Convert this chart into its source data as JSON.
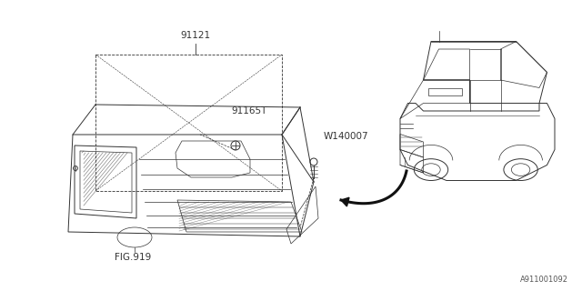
{
  "bg_color": "#ffffff",
  "line_color": "#333333",
  "fig_width": 6.4,
  "fig_height": 3.2,
  "dpi": 100,
  "labels": {
    "part1": "91121",
    "part2": "91165T",
    "part3": "W140007",
    "part4": "FIG.919"
  },
  "footer": "A911001092",
  "lw_thin": 0.5,
  "lw_med": 0.7,
  "lw_thick": 1.2
}
